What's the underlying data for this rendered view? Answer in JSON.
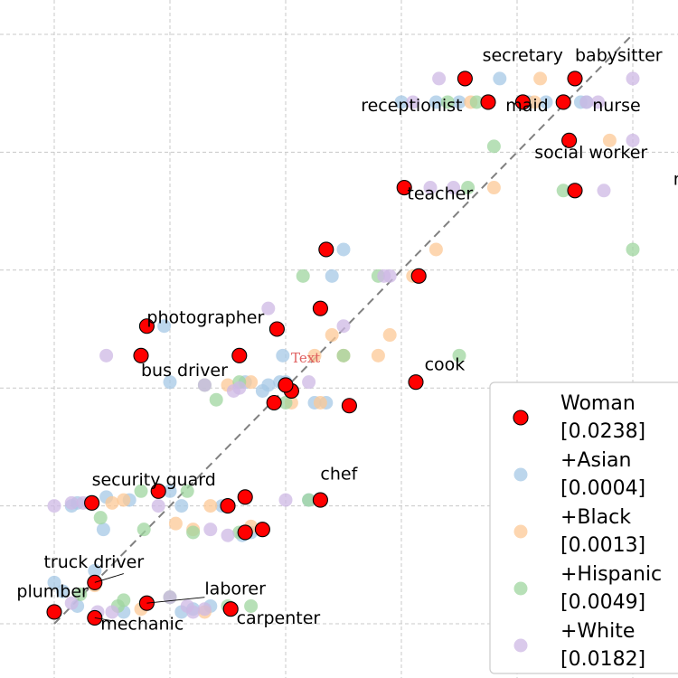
{
  "chart_data": {
    "type": "scatter",
    "xlim": [
      0,
      1
    ],
    "ylim": [
      0,
      1
    ],
    "grid": true,
    "diagonal_reference_line": true,
    "legend": "lower-right",
    "watermark": "Text",
    "colors": {
      "Woman": "#ff0000",
      "+Asian": "#a6c8e6",
      "+Black": "#fcc896",
      "+Hispanic": "#9fd59f",
      "+White": "#cdb8e4"
    },
    "legend_entries": [
      {
        "name": "Woman",
        "value": "[0.0238]"
      },
      {
        "name": "+Asian",
        "value": "[0.0004]"
      },
      {
        "name": "+Black",
        "value": "[0.0013]"
      },
      {
        "name": "+Hispanic",
        "value": "[0.0049]"
      },
      {
        "name": "+White",
        "value": "[0.0182]"
      }
    ],
    "labels": [
      {
        "text": "secretary",
        "x": 0.74,
        "y": 0.955
      },
      {
        "text": "babysitter",
        "x": 0.9,
        "y": 0.955
      },
      {
        "text": "receptionist",
        "x": 0.53,
        "y": 0.87
      },
      {
        "text": "maid",
        "x": 0.78,
        "y": 0.87
      },
      {
        "text": "nurse",
        "x": 0.93,
        "y": 0.87
      },
      {
        "text": "social worker",
        "x": 0.83,
        "y": 0.79
      },
      {
        "text": "model",
        "x": 1.07,
        "y": 0.745
      },
      {
        "text": "teacher",
        "x": 0.61,
        "y": 0.72
      },
      {
        "text": "photographer",
        "x": 0.16,
        "y": 0.51
      },
      {
        "text": "bus driver",
        "x": 0.15,
        "y": 0.42
      },
      {
        "text": "cook",
        "x": 0.64,
        "y": 0.43
      },
      {
        "text": "security guard",
        "x": 0.065,
        "y": 0.235
      },
      {
        "text": "chef",
        "x": 0.46,
        "y": 0.245
      },
      {
        "text": "truck driver",
        "x": -0.018,
        "y": 0.095
      },
      {
        "text": "plumber",
        "x": -0.065,
        "y": 0.045
      },
      {
        "text": "laborer",
        "x": 0.26,
        "y": 0.05
      },
      {
        "text": "mechanic",
        "x": 0.08,
        "y": -0.01
      },
      {
        "text": "carpenter",
        "x": 0.315,
        "y": 0.0
      }
    ],
    "series": [
      {
        "name": "Woman",
        "points": [
          [
            0.71,
            0.925
          ],
          [
            0.9,
            0.925
          ],
          [
            0.75,
            0.885
          ],
          [
            0.81,
            0.885
          ],
          [
            0.88,
            0.885
          ],
          [
            0.89,
            0.82
          ],
          [
            0.9,
            0.735
          ],
          [
            0.605,
            0.74
          ],
          [
            0.47,
            0.635
          ],
          [
            0.63,
            0.59
          ],
          [
            0.46,
            0.535
          ],
          [
            0.16,
            0.505
          ],
          [
            0.385,
            0.5
          ],
          [
            0.15,
            0.455
          ],
          [
            0.32,
            0.455
          ],
          [
            0.41,
            0.395
          ],
          [
            0.4,
            0.405
          ],
          [
            0.625,
            0.41
          ],
          [
            0.38,
            0.375
          ],
          [
            0.51,
            0.37
          ],
          [
            0.18,
            0.225
          ],
          [
            0.33,
            0.215
          ],
          [
            0.46,
            0.21
          ],
          [
            0.065,
            0.205
          ],
          [
            0.3,
            0.2
          ],
          [
            0.36,
            0.16
          ],
          [
            0.33,
            0.155
          ],
          [
            0.07,
            0.07
          ],
          [
            0.0,
            0.02
          ],
          [
            0.07,
            0.01
          ],
          [
            0.16,
            0.035
          ],
          [
            0.305,
            0.025
          ]
        ]
      },
      {
        "name": "+Asian",
        "points": [
          [
            0.77,
            0.925
          ],
          [
            0.66,
            0.885
          ],
          [
            0.6,
            0.885
          ],
          [
            0.82,
            0.885
          ],
          [
            0.85,
            0.885
          ],
          [
            0.91,
            0.885
          ],
          [
            0.92,
            0.885
          ],
          [
            0.7,
            0.885
          ],
          [
            0.5,
            0.635
          ],
          [
            0.48,
            0.59
          ],
          [
            0.19,
            0.505
          ],
          [
            0.395,
            0.455
          ],
          [
            0.39,
            0.41
          ],
          [
            0.37,
            0.405
          ],
          [
            0.36,
            0.395
          ],
          [
            0.33,
            0.41
          ],
          [
            0.4,
            0.41
          ],
          [
            0.47,
            0.375
          ],
          [
            0.45,
            0.375
          ],
          [
            0.2,
            0.41
          ],
          [
            0.03,
            0.2
          ],
          [
            0.04,
            0.205
          ],
          [
            0.06,
            0.205
          ],
          [
            0.09,
            0.215
          ],
          [
            0.2,
            0.225
          ],
          [
            0.29,
            0.2
          ],
          [
            0.34,
            0.155
          ],
          [
            0.325,
            0.15
          ],
          [
            0.085,
            0.16
          ],
          [
            0.44,
            0.21
          ],
          [
            0.015,
            0.055
          ],
          [
            0.0,
            0.07
          ],
          [
            0.04,
            0.03
          ],
          [
            0.12,
            0.02
          ],
          [
            0.22,
            0.02
          ],
          [
            0.24,
            0.025
          ],
          [
            0.27,
            0.03
          ],
          [
            0.07,
            0.09
          ],
          [
            0.13,
            0.21
          ],
          [
            0.22,
            0.2
          ]
        ]
      },
      {
        "name": "+Black",
        "points": [
          [
            0.84,
            0.925
          ],
          [
            0.72,
            0.885
          ],
          [
            0.83,
            0.885
          ],
          [
            0.96,
            0.82
          ],
          [
            0.76,
            0.74
          ],
          [
            0.66,
            0.635
          ],
          [
            0.62,
            0.59
          ],
          [
            0.48,
            0.49
          ],
          [
            0.45,
            0.455
          ],
          [
            0.58,
            0.49
          ],
          [
            0.34,
            0.41
          ],
          [
            0.41,
            0.375
          ],
          [
            0.3,
            0.405
          ],
          [
            0.5,
            0.455
          ],
          [
            0.1,
            0.205
          ],
          [
            0.27,
            0.2
          ],
          [
            0.21,
            0.17
          ],
          [
            0.12,
            0.21
          ],
          [
            0.34,
            0.165
          ],
          [
            0.24,
            0.16
          ],
          [
            0.07,
            0.065
          ],
          [
            0.15,
            0.025
          ],
          [
            0.26,
            0.02
          ],
          [
            0.46,
            0.375
          ],
          [
            0.56,
            0.455
          ]
        ]
      },
      {
        "name": "+Hispanic",
        "points": [
          [
            0.71,
            0.925
          ],
          [
            0.68,
            0.885
          ],
          [
            0.73,
            0.885
          ],
          [
            0.76,
            0.81
          ],
          [
            0.715,
            0.74
          ],
          [
            0.88,
            0.735
          ],
          [
            1.0,
            0.635
          ],
          [
            0.43,
            0.59
          ],
          [
            0.56,
            0.59
          ],
          [
            0.5,
            0.455
          ],
          [
            0.7,
            0.455
          ],
          [
            0.28,
            0.38
          ],
          [
            0.4,
            0.375
          ],
          [
            0.26,
            0.405
          ],
          [
            0.15,
            0.225
          ],
          [
            0.23,
            0.225
          ],
          [
            0.155,
            0.16
          ],
          [
            0.24,
            0.155
          ],
          [
            0.32,
            0.155
          ],
          [
            0.44,
            0.21
          ],
          [
            0.045,
            0.05
          ],
          [
            0.11,
            0.03
          ],
          [
            0.2,
            0.045
          ],
          [
            0.12,
            0.04
          ],
          [
            0.3,
            0.03
          ],
          [
            0.34,
            0.03
          ],
          [
            0.32,
            0.41
          ],
          [
            0.08,
            0.18
          ]
        ]
      },
      {
        "name": "+White",
        "points": [
          [
            0.665,
            0.925
          ],
          [
            1.0,
            0.925
          ],
          [
            0.62,
            0.885
          ],
          [
            0.92,
            0.885
          ],
          [
            0.94,
            0.885
          ],
          [
            1.0,
            0.82
          ],
          [
            0.95,
            0.735
          ],
          [
            0.65,
            0.74
          ],
          [
            0.69,
            0.74
          ],
          [
            0.58,
            0.59
          ],
          [
            0.57,
            0.59
          ],
          [
            0.5,
            0.505
          ],
          [
            0.37,
            0.535
          ],
          [
            0.09,
            0.455
          ],
          [
            0.44,
            0.41
          ],
          [
            0.26,
            0.405
          ],
          [
            0.4,
            0.405
          ],
          [
            0.31,
            0.395
          ],
          [
            0.32,
            0.4
          ],
          [
            0.0,
            0.2
          ],
          [
            0.03,
            0.205
          ],
          [
            0.05,
            0.205
          ],
          [
            0.4,
            0.21
          ],
          [
            0.18,
            0.2
          ],
          [
            0.27,
            0.16
          ],
          [
            0.3,
            0.15
          ],
          [
            0.23,
            0.03
          ],
          [
            0.26,
            0.025
          ],
          [
            0.075,
            0.02
          ],
          [
            0.1,
            0.02
          ],
          [
            0.03,
            0.035
          ],
          [
            0.2,
            0.045
          ],
          [
            0.24,
            0.02
          ]
        ]
      }
    ]
  }
}
